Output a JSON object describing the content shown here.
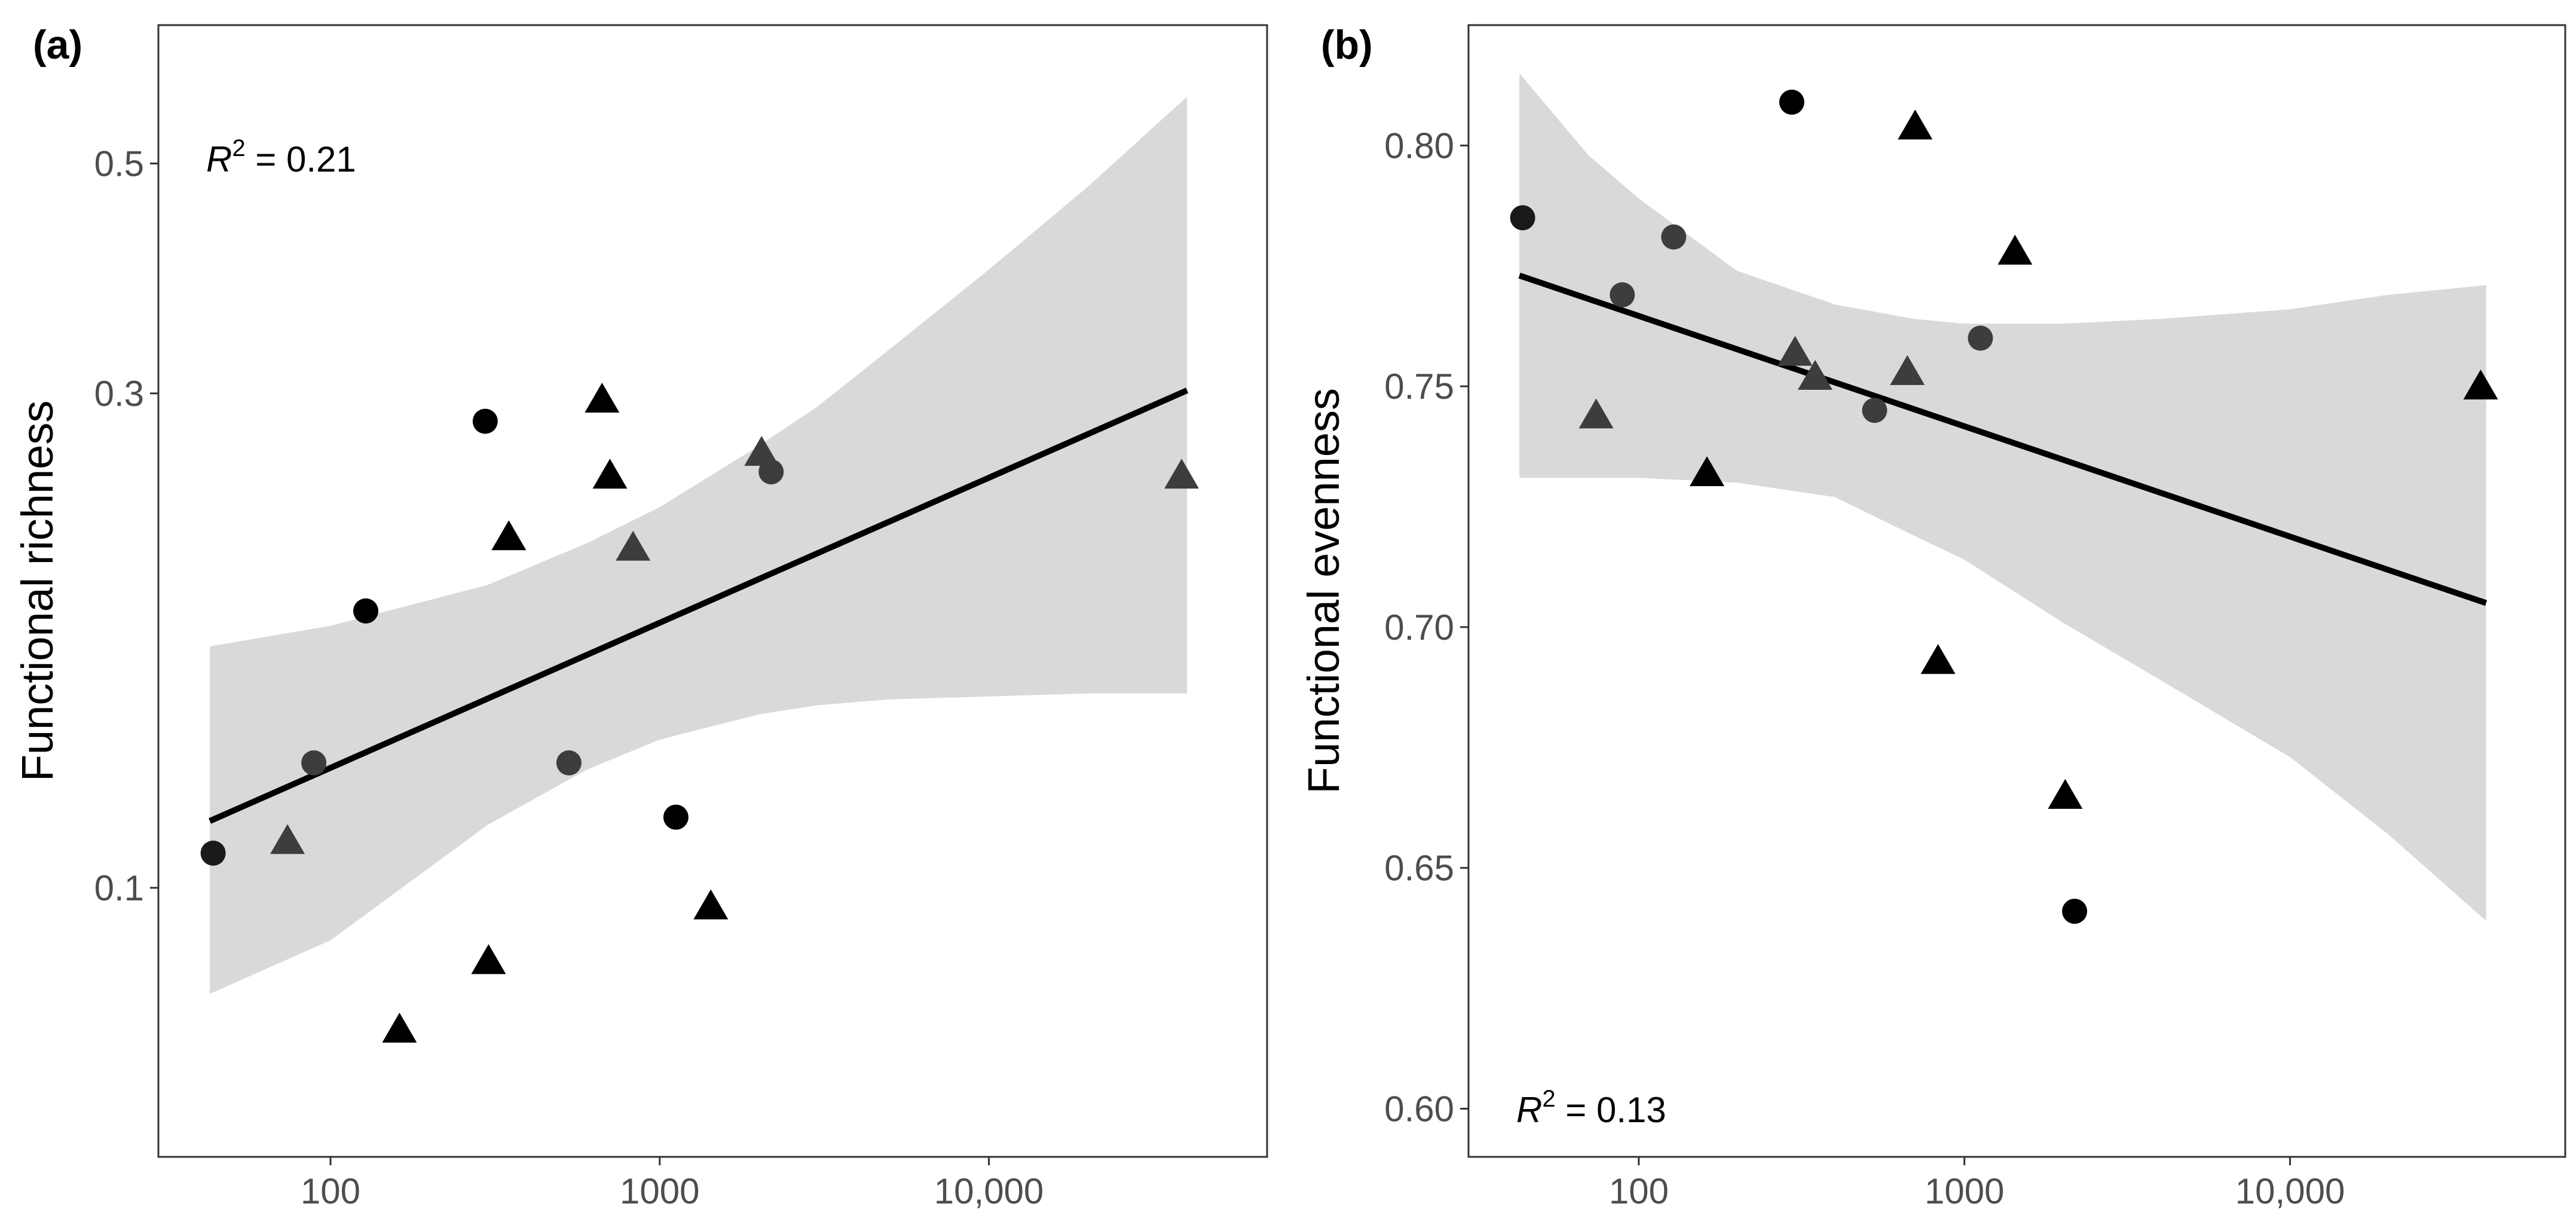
{
  "chart_data": [
    {
      "type": "scatter",
      "panel_label": "(a)",
      "ylabel": "Functional richness",
      "xlabel": "",
      "x_scale": "log",
      "y_scale": "log",
      "xlim": [
        30,
        70000
      ],
      "ylim": [
        0.055,
        0.68
      ],
      "x_ticks": [
        {
          "value": 100,
          "label": "100"
        },
        {
          "value": 1000,
          "label": "1000"
        },
        {
          "value": 10000,
          "label": "10,000"
        }
      ],
      "y_ticks": [
        {
          "value": 0.1,
          "label": "0.1"
        },
        {
          "value": 0.3,
          "label": "0.3"
        },
        {
          "value": 0.5,
          "label": "0.5"
        }
      ],
      "annotation": {
        "prefix": "R",
        "superscript": "2",
        "suffix": " = 0.21",
        "position": "top-left"
      },
      "fit": {
        "x": [
          43,
          40000
        ],
        "y": [
          0.116,
          0.302
        ],
        "ci_x": [
          43,
          100,
          300,
          600,
          1000,
          2000,
          3000,
          5000,
          10000,
          20000,
          40000
        ],
        "ci_lower": [
          0.079,
          0.089,
          0.115,
          0.13,
          0.139,
          0.147,
          0.15,
          0.152,
          0.153,
          0.154,
          0.154
        ],
        "ci_upper": [
          0.171,
          0.179,
          0.196,
          0.215,
          0.233,
          0.267,
          0.291,
          0.331,
          0.395,
          0.475,
          0.58
        ]
      },
      "series": [
        {
          "name": "Circles",
          "marker": "circle",
          "points": [
            {
              "x": 44,
              "y": 0.108,
              "color": "#1a1a1a"
            },
            {
              "x": 89,
              "y": 0.132,
              "color": "#3d3d3d"
            },
            {
              "x": 128,
              "y": 0.185,
              "color": "#000000"
            },
            {
              "x": 295,
              "y": 0.282,
              "color": "#000000"
            },
            {
              "x": 530,
              "y": 0.132,
              "color": "#3d3d3d"
            },
            {
              "x": 1120,
              "y": 0.117,
              "color": "#000000"
            },
            {
              "x": 2180,
              "y": 0.252,
              "color": "#3d3d3d"
            }
          ]
        },
        {
          "name": "Triangles",
          "marker": "triangle",
          "points": [
            {
              "x": 74,
              "y": 0.111,
              "color": "#3d3d3d"
            },
            {
              "x": 162,
              "y": 0.073,
              "color": "#000000"
            },
            {
              "x": 302,
              "y": 0.085,
              "color": "#000000"
            },
            {
              "x": 348,
              "y": 0.218,
              "color": "#000000"
            },
            {
              "x": 668,
              "y": 0.296,
              "color": "#000000"
            },
            {
              "x": 706,
              "y": 0.25,
              "color": "#000000"
            },
            {
              "x": 830,
              "y": 0.213,
              "color": "#3d3d3d"
            },
            {
              "x": 1430,
              "y": 0.096,
              "color": "#000000"
            },
            {
              "x": 2040,
              "y": 0.263,
              "color": "#3d3d3d"
            },
            {
              "x": 38500,
              "y": 0.25,
              "color": "#3d3d3d"
            }
          ]
        }
      ]
    },
    {
      "type": "scatter",
      "panel_label": "(b)",
      "ylabel": "Functional evenness",
      "xlabel": "",
      "x_scale": "log",
      "y_scale": "linear",
      "xlim": [
        30,
        70000
      ],
      "ylim": [
        0.59,
        0.825
      ],
      "x_ticks": [
        {
          "value": 100,
          "label": "100"
        },
        {
          "value": 1000,
          "label": "1000"
        },
        {
          "value": 10000,
          "label": "10,000"
        }
      ],
      "y_ticks": [
        {
          "value": 0.6,
          "label": "0.60"
        },
        {
          "value": 0.65,
          "label": "0.65"
        },
        {
          "value": 0.7,
          "label": "0.70"
        },
        {
          "value": 0.75,
          "label": "0.75"
        },
        {
          "value": 0.8,
          "label": "0.80"
        }
      ],
      "annotation": {
        "prefix": "R",
        "superscript": "2",
        "suffix": " = 0.13",
        "position": "bottom-left"
      },
      "fit": {
        "x": [
          43,
          40000
        ],
        "y": [
          0.773,
          0.705
        ],
        "ci_x": [
          43,
          70,
          100,
          200,
          400,
          700,
          1000,
          2000,
          4000,
          10000,
          20000,
          40000
        ],
        "ci_lower": [
          0.731,
          0.731,
          0.731,
          0.73,
          0.727,
          0.719,
          0.714,
          0.701,
          0.689,
          0.673,
          0.657,
          0.639
        ],
        "ci_upper": [
          0.815,
          0.798,
          0.789,
          0.774,
          0.767,
          0.764,
          0.763,
          0.763,
          0.764,
          0.766,
          0.769,
          0.771
        ]
      },
      "series": [
        {
          "name": "Circles",
          "marker": "circle",
          "points": [
            {
              "x": 44,
              "y": 0.785,
              "color": "#1a1a1a"
            },
            {
              "x": 89,
              "y": 0.769,
              "color": "#3d3d3d"
            },
            {
              "x": 128,
              "y": 0.781,
              "color": "#3d3d3d"
            },
            {
              "x": 295,
              "y": 0.809,
              "color": "#000000"
            },
            {
              "x": 530,
              "y": 0.745,
              "color": "#3d3d3d"
            },
            {
              "x": 1120,
              "y": 0.76,
              "color": "#3d3d3d"
            },
            {
              "x": 2180,
              "y": 0.641,
              "color": "#000000"
            }
          ]
        },
        {
          "name": "Triangles",
          "marker": "triangle",
          "points": [
            {
              "x": 74,
              "y": 0.744,
              "color": "#3d3d3d"
            },
            {
              "x": 162,
              "y": 0.732,
              "color": "#000000"
            },
            {
              "x": 302,
              "y": 0.757,
              "color": "#3d3d3d"
            },
            {
              "x": 348,
              "y": 0.752,
              "color": "#3d3d3d"
            },
            {
              "x": 668,
              "y": 0.753,
              "color": "#3d3d3d"
            },
            {
              "x": 706,
              "y": 0.804,
              "color": "#000000"
            },
            {
              "x": 830,
              "y": 0.693,
              "color": "#000000"
            },
            {
              "x": 1430,
              "y": 0.778,
              "color": "#000000"
            },
            {
              "x": 2040,
              "y": 0.665,
              "color": "#000000"
            },
            {
              "x": 38500,
              "y": 0.75,
              "color": "#000000"
            }
          ]
        }
      ]
    }
  ],
  "colors": {
    "ci_band": "#d9d9d9",
    "fit_line": "#000000",
    "frame": "#333333",
    "tick_label": "#4d4d4d"
  }
}
